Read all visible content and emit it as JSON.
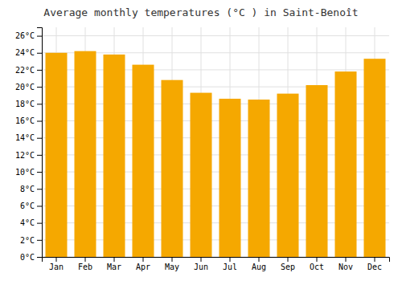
{
  "chart_data": {
    "type": "bar",
    "title": "Average monthly temperatures (°C ) in Saint-Benoît",
    "categories": [
      "Jan",
      "Feb",
      "Mar",
      "Apr",
      "May",
      "Jun",
      "Jul",
      "Aug",
      "Sep",
      "Oct",
      "Nov",
      "Dec"
    ],
    "values": [
      24.0,
      24.2,
      23.8,
      22.6,
      20.8,
      19.3,
      18.6,
      18.5,
      19.2,
      20.2,
      21.8,
      23.3
    ],
    "color": "#F5A800",
    "ylim": [
      0,
      27
    ],
    "yticks": [
      {
        "value": 0,
        "label": "0°C"
      },
      {
        "value": 2,
        "label": "2°C"
      },
      {
        "value": 4,
        "label": "4°C"
      },
      {
        "value": 6,
        "label": "6°C"
      },
      {
        "value": 8,
        "label": "8°C"
      },
      {
        "value": 10,
        "label": "10°C"
      },
      {
        "value": 12,
        "label": "12°C"
      },
      {
        "value": 14,
        "label": "14°C"
      },
      {
        "value": 16,
        "label": "16°C"
      },
      {
        "value": 18,
        "label": "18°C"
      },
      {
        "value": 20,
        "label": "20°C"
      },
      {
        "value": 22,
        "label": "22°C"
      },
      {
        "value": 24,
        "label": "24°C"
      },
      {
        "value": 26,
        "label": "26°C"
      }
    ],
    "grid": true
  }
}
